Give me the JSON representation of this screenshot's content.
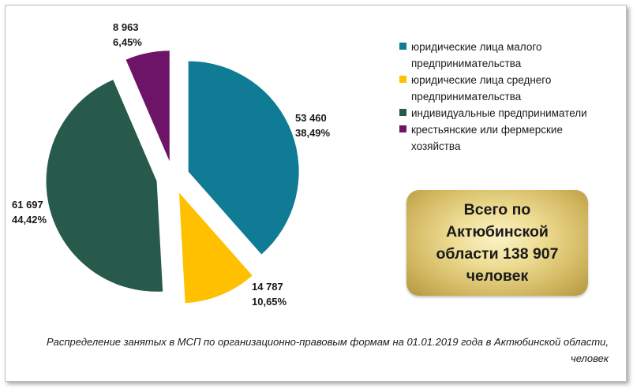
{
  "chart_data": {
    "type": "pie",
    "slices": [
      {
        "name": "юридические лица малого предпринимательства",
        "value": 53460,
        "value_label": "53 460",
        "percent_label": "38,49%",
        "color": "#0f7b94"
      },
      {
        "name": "юридические лица среднего предпринимательства",
        "value": 14787,
        "value_label": "14 787",
        "percent_label": "10,65%",
        "color": "#ffc000"
      },
      {
        "name": "индивидуальные предприниматели",
        "value": 61697,
        "value_label": "61 697",
        "percent_label": "44,42%",
        "color": "#275a4b"
      },
      {
        "name": "крестьянские или фермерские хозяйства",
        "value": 8963,
        "value_label": "8 963",
        "percent_label": "6,45%",
        "color": "#6d1468"
      }
    ],
    "legend_position": "right"
  },
  "total_box": {
    "text": "Всего по Актюбинской области 138 907 человек"
  },
  "caption": "Распределение занятых в МСП по организационно-правовым формам на 01.01.2019 года в Актюбинской области, человек"
}
